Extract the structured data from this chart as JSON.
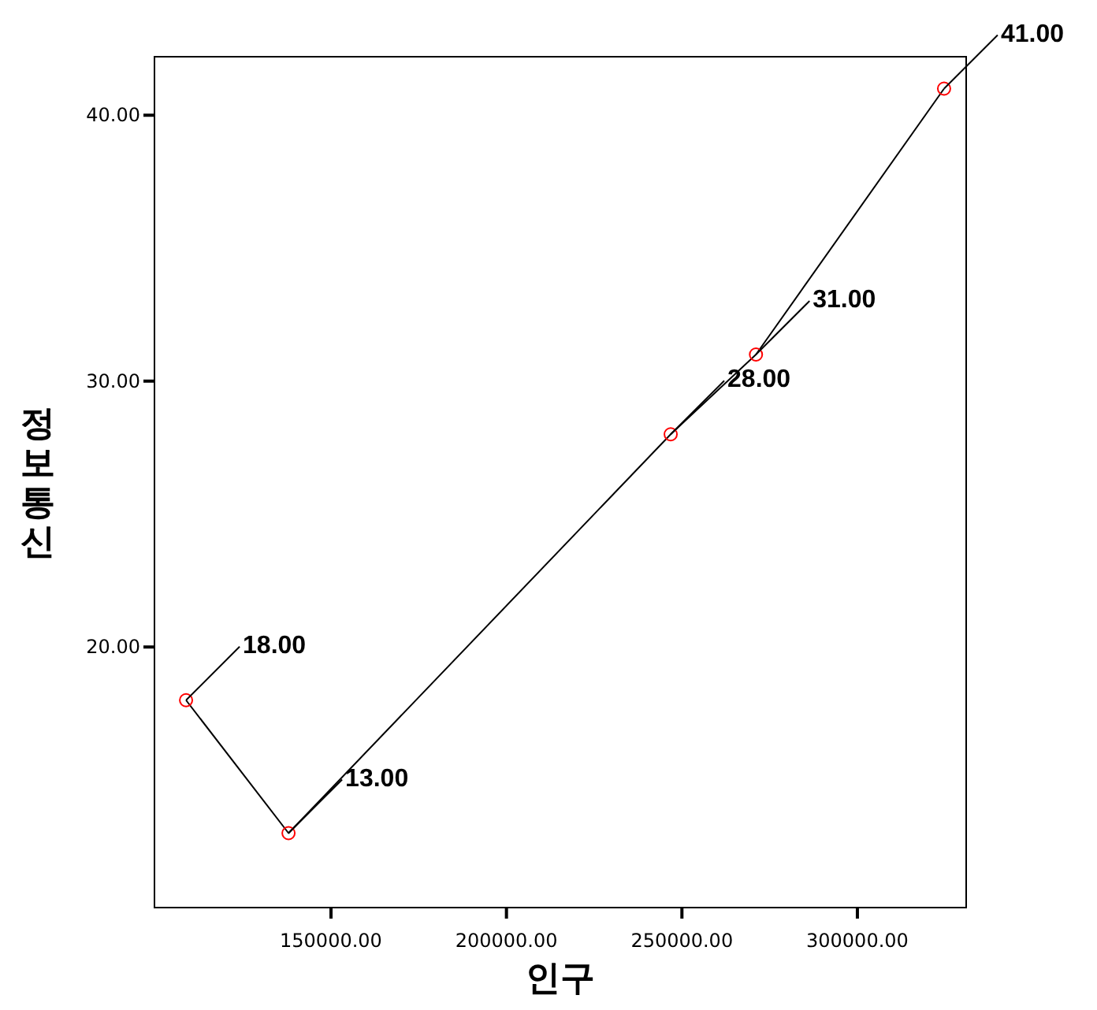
{
  "chart_data": {
    "type": "line",
    "xlabel": "인구",
    "ylabel": "정보통신",
    "x": [
      108700,
      137900,
      246800,
      271100,
      324700
    ],
    "series": [
      {
        "color": "#000000",
        "colors": [
          "#ff0000",
          "#ff0000",
          "#ff0000",
          "#ff0000",
          "#ff0000"
        ],
        "values": [
          18,
          13,
          28,
          31,
          41
        ],
        "value_labels": [
          "18.00",
          "13.00",
          "28.00",
          "31.00",
          "41.00"
        ]
      }
    ],
    "xlim": [
      99700,
      331000
    ],
    "ylim": [
      10.2,
      42.2
    ],
    "xticks": [
      {
        "value": 150000,
        "label": "150000.00"
      },
      {
        "value": 200000,
        "label": "200000.00"
      },
      {
        "value": 250000,
        "label": "250000.00"
      },
      {
        "value": 300000,
        "label": "300000.00"
      }
    ],
    "yticks": [
      {
        "value": 20,
        "label": "20.00"
      },
      {
        "value": 30,
        "label": "30.00"
      },
      {
        "value": 40,
        "label": "40.00"
      }
    ],
    "marker": "circle",
    "line_style": "solid",
    "grid": false
  }
}
